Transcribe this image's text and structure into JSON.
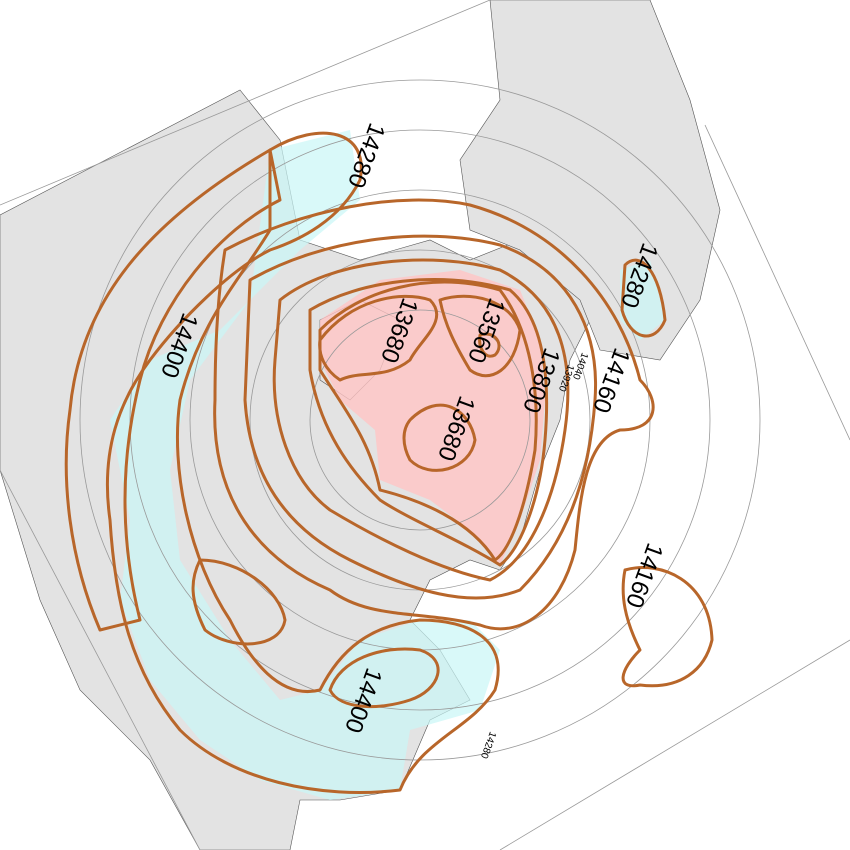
{
  "contour_labels": [
    "14280",
    "14280",
    "14400",
    "13680",
    "13560",
    "13800",
    "13920",
    "14040",
    "14160",
    "13680",
    "14160",
    "14400",
    "14280"
  ]
}
